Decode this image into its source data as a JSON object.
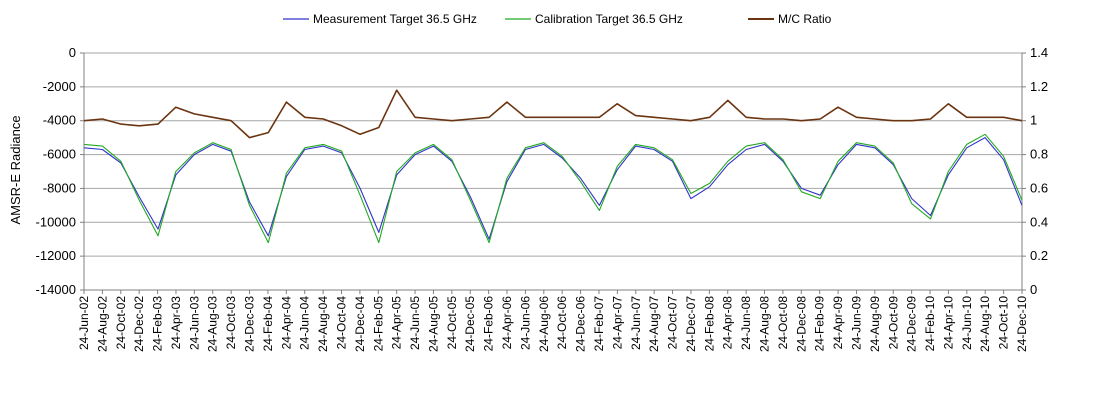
{
  "chart_data": {
    "type": "line",
    "title": "",
    "ylabel": "AMSR-E Radiance",
    "y2label": "",
    "ylim": [
      -14000,
      0
    ],
    "y2lim": [
      0,
      1.4
    ],
    "yticks": [
      0,
      -2000,
      -4000,
      -6000,
      -8000,
      -10000,
      -12000,
      -14000
    ],
    "y2ticks": [
      1.4,
      1.2,
      1,
      0.8,
      0.6,
      0.4,
      0.2,
      0
    ],
    "xlim": [
      "2002-06-24",
      "2010-12-24"
    ],
    "xticks": [
      "24-Jun-02",
      "24-Aug-02",
      "24-Oct-02",
      "24-Dec-02",
      "24-Feb-03",
      "24-Apr-03",
      "24-Jun-03",
      "24-Aug-03",
      "24-Oct-03",
      "24-Dec-03",
      "24-Feb-04",
      "24-Apr-04",
      "24-Jun-04",
      "24-Aug-04",
      "24-Oct-04",
      "24-Dec-04",
      "24-Feb-05",
      "24-Apr-05",
      "24-Jun-05",
      "24-Aug-05",
      "24-Oct-05",
      "24-Dec-05",
      "24-Feb-06",
      "24-Apr-06",
      "24-Jun-06",
      "24-Aug-06",
      "24-Oct-06",
      "24-Dec-06",
      "24-Feb-07",
      "24-Apr-07",
      "24-Jun-07",
      "24-Aug-07",
      "24-Oct-07",
      "24-Dec-07",
      "24-Feb-08",
      "24-Apr-08",
      "24-Jun-08",
      "24-Aug-08",
      "24-Oct-08",
      "24-Dec-08",
      "24-Feb-09",
      "24-Apr-09",
      "24-Jun-09",
      "24-Aug-09",
      "24-Oct-09",
      "24-Dec-09",
      "24-Feb-10",
      "24-Apr-10",
      "24-Jun-10",
      "24-Aug-10",
      "24-Oct-10",
      "24-Dec-10"
    ],
    "grid": "horizontal",
    "legend_position": "top",
    "series": [
      {
        "name": "Measurement Target 36.5 GHz",
        "color": "#3333cc",
        "axis": "left",
        "x": [
          "2002-06-24",
          "2002-08-24",
          "2002-10-24",
          "2002-12-24",
          "2003-02-24",
          "2003-04-24",
          "2003-06-24",
          "2003-08-24",
          "2003-10-24",
          "2003-12-24",
          "2004-02-24",
          "2004-04-24",
          "2004-06-24",
          "2004-08-24",
          "2004-10-24",
          "2004-12-24",
          "2005-02-24",
          "2005-04-24",
          "2005-06-24",
          "2005-08-24",
          "2005-10-24",
          "2005-12-24",
          "2006-02-24",
          "2006-04-24",
          "2006-06-24",
          "2006-08-24",
          "2006-10-24",
          "2006-12-24",
          "2007-02-24",
          "2007-04-24",
          "2007-06-24",
          "2007-08-24",
          "2007-10-24",
          "2007-12-24",
          "2008-02-24",
          "2008-04-24",
          "2008-06-24",
          "2008-08-24",
          "2008-10-24",
          "2008-12-24",
          "2009-02-24",
          "2009-04-24",
          "2009-06-24",
          "2009-08-24",
          "2009-10-24",
          "2009-12-24",
          "2010-02-24",
          "2010-04-24",
          "2010-06-24",
          "2010-08-24",
          "2010-10-24",
          "2010-12-24"
        ],
        "y": [
          -5600,
          -5700,
          -6500,
          -8500,
          -10400,
          -7200,
          -6000,
          -5400,
          -5800,
          -8800,
          -10800,
          -7300,
          -5700,
          -5500,
          -5900,
          -8000,
          -10600,
          -7200,
          -6000,
          -5500,
          -6400,
          -8500,
          -11000,
          -7600,
          -5700,
          -5400,
          -6200,
          -7400,
          -9000,
          -6900,
          -5500,
          -5700,
          -6400,
          -8600,
          -7900,
          -6600,
          -5700,
          -5400,
          -6400,
          -8000,
          -8400,
          -6600,
          -5400,
          -5600,
          -6600,
          -8600,
          -9600,
          -7200,
          -5600,
          -5000,
          -6300,
          -9000
        ]
      },
      {
        "name": "Calibration Target 36.5 GHz",
        "color": "#22aa22",
        "axis": "left",
        "x": [
          "2002-06-24",
          "2002-08-24",
          "2002-10-24",
          "2002-12-24",
          "2003-02-24",
          "2003-04-24",
          "2003-06-24",
          "2003-08-24",
          "2003-10-24",
          "2003-12-24",
          "2004-02-24",
          "2004-04-24",
          "2004-06-24",
          "2004-08-24",
          "2004-10-24",
          "2004-12-24",
          "2005-02-24",
          "2005-04-24",
          "2005-06-24",
          "2005-08-24",
          "2005-10-24",
          "2005-12-24",
          "2006-02-24",
          "2006-04-24",
          "2006-06-24",
          "2006-08-24",
          "2006-10-24",
          "2006-12-24",
          "2007-02-24",
          "2007-04-24",
          "2007-06-24",
          "2007-08-24",
          "2007-10-24",
          "2007-12-24",
          "2008-02-24",
          "2008-04-24",
          "2008-06-24",
          "2008-08-24",
          "2008-10-24",
          "2008-12-24",
          "2009-02-24",
          "2009-04-24",
          "2009-06-24",
          "2009-08-24",
          "2009-10-24",
          "2009-12-24",
          "2010-02-24",
          "2010-04-24",
          "2010-06-24",
          "2010-08-24",
          "2010-10-24",
          "2010-12-24"
        ],
        "y": [
          -5400,
          -5500,
          -6400,
          -8700,
          -10800,
          -7000,
          -5900,
          -5300,
          -5700,
          -9000,
          -11200,
          -7100,
          -5600,
          -5400,
          -5800,
          -8400,
          -11200,
          -7000,
          -5900,
          -5400,
          -6300,
          -8700,
          -11200,
          -7400,
          -5600,
          -5300,
          -6100,
          -7600,
          -9300,
          -6700,
          -5400,
          -5600,
          -6300,
          -8300,
          -7700,
          -6400,
          -5500,
          -5300,
          -6300,
          -8200,
          -8600,
          -6400,
          -5300,
          -5500,
          -6500,
          -8900,
          -9800,
          -7000,
          -5400,
          -4800,
          -6100,
          -8700
        ]
      },
      {
        "name": "M/C Ratio",
        "color": "#6b3410",
        "axis": "right",
        "x": [
          "2002-06-24",
          "2002-08-24",
          "2002-10-24",
          "2002-12-24",
          "2003-02-24",
          "2003-04-24",
          "2003-06-24",
          "2003-08-24",
          "2003-10-24",
          "2003-12-24",
          "2004-02-24",
          "2004-04-24",
          "2004-06-24",
          "2004-08-24",
          "2004-10-24",
          "2004-12-24",
          "2005-02-24",
          "2005-04-24",
          "2005-06-24",
          "2005-08-24",
          "2005-10-24",
          "2005-12-24",
          "2006-02-24",
          "2006-04-24",
          "2006-06-24",
          "2006-08-24",
          "2006-10-24",
          "2006-12-24",
          "2007-02-24",
          "2007-04-24",
          "2007-06-24",
          "2007-08-24",
          "2007-10-24",
          "2007-12-24",
          "2008-02-24",
          "2008-04-24",
          "2008-06-24",
          "2008-08-24",
          "2008-10-24",
          "2008-12-24",
          "2009-02-24",
          "2009-04-24",
          "2009-06-24",
          "2009-08-24",
          "2009-10-24",
          "2009-12-24",
          "2010-02-24",
          "2010-04-24",
          "2010-06-24",
          "2010-08-24",
          "2010-10-24",
          "2010-12-24"
        ],
        "y": [
          1.0,
          1.01,
          0.98,
          0.97,
          0.98,
          1.08,
          1.04,
          1.02,
          1.0,
          0.9,
          0.93,
          1.11,
          1.02,
          1.01,
          0.97,
          0.92,
          0.96,
          1.18,
          1.02,
          1.01,
          1.0,
          1.01,
          1.02,
          1.11,
          1.02,
          1.02,
          1.02,
          1.02,
          1.02,
          1.1,
          1.03,
          1.02,
          1.01,
          1.0,
          1.02,
          1.12,
          1.02,
          1.01,
          1.01,
          1.0,
          1.01,
          1.08,
          1.02,
          1.01,
          1.0,
          1.0,
          1.01,
          1.1,
          1.02,
          1.02,
          1.02,
          1.0
        ]
      }
    ]
  }
}
